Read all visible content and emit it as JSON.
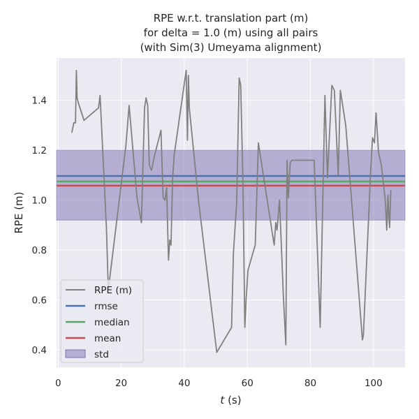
{
  "chart_data": {
    "type": "line",
    "title": [
      "RPE w.r.t. translation part (m)",
      "for delta = 1.0 (m) using all pairs",
      "(with Sim(3) Umeyama alignment)"
    ],
    "xlabel_italic": "t",
    "xlabel_rest": " (s)",
    "ylabel": "RPE (m)",
    "xlim": [
      -0.5,
      110
    ],
    "ylim": [
      0.33,
      1.57
    ],
    "xticks": [
      0,
      20,
      40,
      60,
      80,
      100
    ],
    "yticks": [
      0.4,
      0.6,
      0.8,
      1.0,
      1.2,
      1.4
    ],
    "ytick_labels": [
      "0.4",
      "0.6",
      "0.8",
      "1.0",
      "1.2",
      "1.4"
    ],
    "grid": true,
    "legend_position": "lower-left",
    "legend": [
      "RPE (m)",
      "rmse",
      "median",
      "mean",
      "std"
    ],
    "series": [
      {
        "name": "RPE (m)",
        "color": "#808080",
        "x": [
          4.3,
          5.0,
          5.5,
          5.8,
          6.0,
          6.4,
          8.2,
          12.8,
          13.3,
          15.3,
          15.9,
          21.5,
          22.5,
          25.0,
          26.4,
          27.4,
          27.9,
          28.4,
          28.9,
          29.6,
          30.6,
          32.6,
          33.3,
          33.9,
          34.4,
          35.0,
          35.4,
          35.8,
          36.3,
          36.8,
          40.6,
          41.0,
          41.3,
          41.6,
          44.5,
          50.3,
          55.0,
          55.6,
          56.6,
          57.4,
          57.9,
          58.6,
          59.2,
          59.6,
          60.2,
          62.5,
          63.5,
          68.5,
          69.0,
          69.4,
          70.2,
          71.4,
          72.2,
          72.6,
          73.0,
          73.6,
          74.1,
          81.2,
          83.1,
          84.6,
          85.4,
          86.8,
          87.6,
          88.8,
          89.5,
          91.2,
          96.5,
          96.8,
          99.1,
          99.7,
          100.3,
          100.8,
          101.6,
          102.5,
          103.8,
          104.2,
          104.6,
          104.9,
          105.1,
          105.5
        ],
        "y": [
          1.27,
          1.31,
          1.31,
          1.52,
          1.41,
          1.39,
          1.32,
          1.37,
          1.42,
          0.89,
          0.64,
          1.22,
          1.38,
          1.01,
          0.91,
          1.37,
          1.41,
          1.38,
          1.14,
          1.12,
          1.18,
          1.28,
          1.01,
          1.0,
          1.05,
          0.76,
          0.84,
          0.82,
          1.09,
          1.18,
          1.52,
          1.24,
          1.5,
          1.37,
          1.0,
          0.39,
          0.49,
          0.79,
          0.99,
          1.49,
          1.46,
          1.07,
          0.49,
          0.6,
          0.72,
          0.82,
          1.23,
          0.82,
          0.91,
          0.88,
          1.0,
          0.62,
          0.42,
          1.16,
          1.01,
          1.15,
          1.16,
          1.16,
          0.49,
          1.42,
          1.09,
          1.46,
          1.44,
          1.1,
          1.44,
          1.3,
          0.44,
          0.46,
          1.12,
          1.25,
          1.23,
          1.35,
          1.19,
          1.14,
          0.99,
          0.88,
          1.02,
          0.93,
          0.89,
          1.04
        ]
      }
    ],
    "stats": {
      "rmse": 1.097,
      "median": 1.075,
      "mean": 1.058,
      "std_low": 0.92,
      "std_high": 1.2
    },
    "colors": {
      "background": "#eaeaf2",
      "grid": "#ffffff",
      "rpe": "#808080",
      "rmse": "#4c72b0",
      "median": "#55a868",
      "mean": "#c44e52",
      "std_fill": "#8172b2",
      "text": "#262626"
    }
  }
}
